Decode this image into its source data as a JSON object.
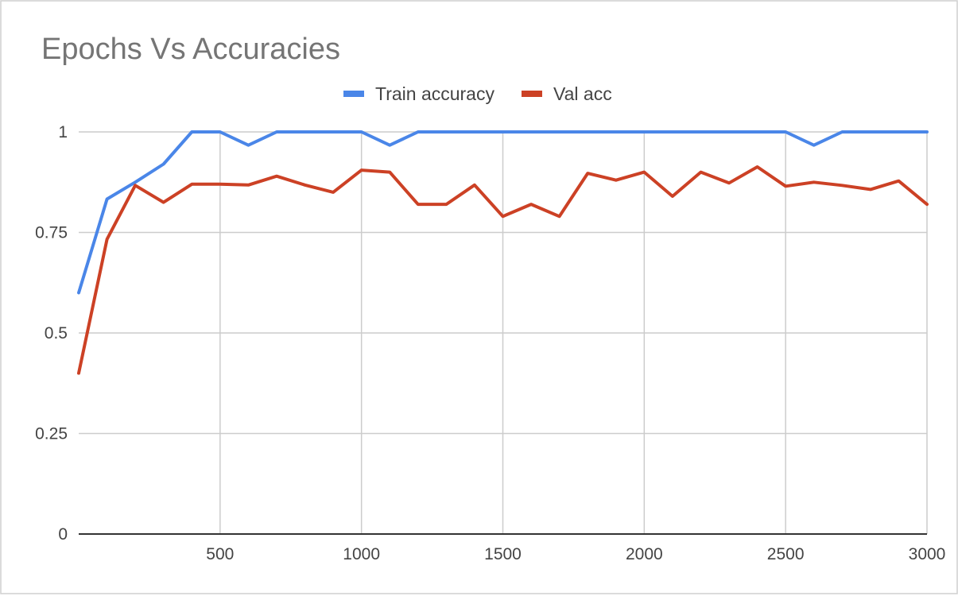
{
  "chart_data": {
    "type": "line",
    "title": "Epochs Vs Accuracies",
    "xlabel": "",
    "ylabel": "",
    "xlim": [
      0,
      3000
    ],
    "ylim": [
      0,
      1
    ],
    "x_ticks": [
      500,
      1000,
      1500,
      2000,
      2500,
      3000
    ],
    "y_ticks": [
      {
        "value": 0,
        "label": "0"
      },
      {
        "value": 0.25,
        "label": "0.25"
      },
      {
        "value": 0.5,
        "label": "0.5"
      },
      {
        "value": 0.75,
        "label": "0.75"
      },
      {
        "value": 1,
        "label": "1"
      }
    ],
    "grid": true,
    "legend_position": "top",
    "x": [
      0,
      100,
      200,
      300,
      400,
      500,
      600,
      700,
      800,
      900,
      1000,
      1100,
      1200,
      1300,
      1400,
      1500,
      1600,
      1700,
      1800,
      1900,
      2000,
      2100,
      2200,
      2300,
      2400,
      2500,
      2600,
      2700,
      2800,
      2900,
      3000
    ],
    "series": [
      {
        "name": "Train accuracy",
        "color": "#4a86e8",
        "values": [
          0.6,
          0.833,
          0.875,
          0.92,
          1,
          1,
          0.967,
          1,
          1,
          1,
          1,
          0.967,
          1,
          1,
          1,
          1,
          1,
          1,
          1,
          1,
          1,
          1,
          1,
          1,
          1,
          1,
          0.967,
          1,
          1,
          1,
          1
        ]
      },
      {
        "name": "Val acc",
        "color": "#cc4125",
        "values": [
          0.4,
          0.733,
          0.867,
          0.825,
          0.87,
          0.87,
          0.868,
          0.89,
          0.868,
          0.85,
          0.905,
          0.9,
          0.82,
          0.82,
          0.868,
          0.79,
          0.82,
          0.79,
          0.897,
          0.88,
          0.9,
          0.84,
          0.9,
          0.873,
          0.913,
          0.865,
          0.875,
          0.867,
          0.857,
          0.878,
          0.82
        ]
      }
    ]
  }
}
